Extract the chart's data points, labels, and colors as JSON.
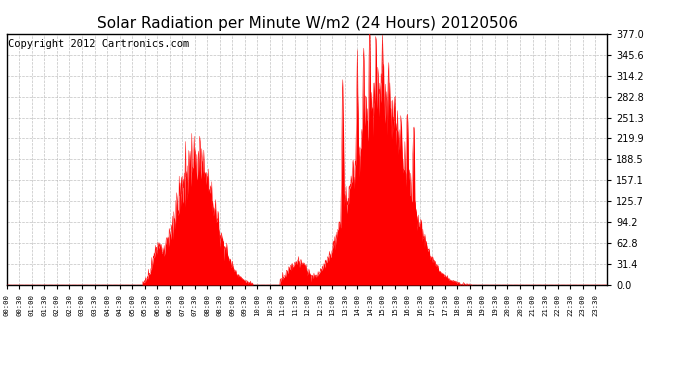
{
  "title": "Solar Radiation per Minute W/m2 (24 Hours) 20120506",
  "copyright": "Copyright 2012 Cartronics.com",
  "yticks": [
    0.0,
    31.4,
    62.8,
    94.2,
    125.7,
    157.1,
    188.5,
    219.9,
    251.3,
    282.8,
    314.2,
    345.6,
    377.0
  ],
  "ymax": 377.0,
  "ymin": 0.0,
  "bar_color": "#ff0000",
  "background_color": "#ffffff",
  "grid_color": "#bbbbbb",
  "border_color": "#000000",
  "dashed_line_color": "#ff0000",
  "title_fontsize": 11,
  "copyright_fontsize": 7.5,
  "xtick_fontsize": 5.2,
  "ytick_fontsize": 7.0
}
